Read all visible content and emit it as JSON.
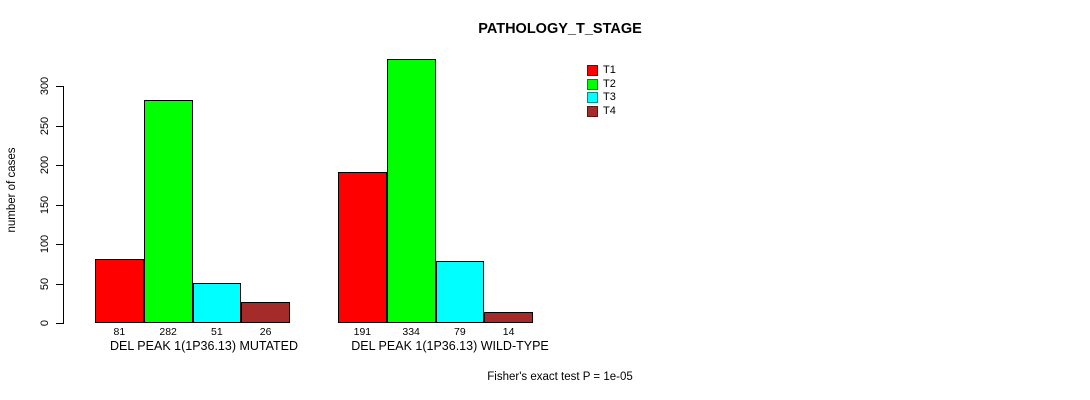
{
  "chart_data": {
    "type": "bar",
    "title": "PATHOLOGY_T_STAGE",
    "ylabel": "number of cases",
    "xlabel": "",
    "categories": [
      "DEL PEAK  1(1P36.13) MUTATED",
      "DEL PEAK  1(1P36.13) WILD-TYPE"
    ],
    "series": [
      {
        "name": "T1",
        "color": "#FF0000",
        "values": [
          81,
          191
        ]
      },
      {
        "name": "T2",
        "color": "#00FF00",
        "values": [
          282,
          334
        ]
      },
      {
        "name": "T3",
        "color": "#00FFFF",
        "values": [
          51,
          79
        ]
      },
      {
        "name": "T4",
        "color": "#A52A2A",
        "values": [
          26,
          14
        ]
      }
    ],
    "bar_value_labels": [
      [
        81,
        282,
        51,
        26
      ],
      [
        191,
        334,
        79,
        14
      ]
    ],
    "yticks": [
      0,
      50,
      100,
      150,
      200,
      250,
      300
    ],
    "ylim": [
      0,
      340
    ],
    "grid": false,
    "legend_position": "top-right",
    "legend_entries": [
      "T1",
      "T2",
      "T3",
      "T4"
    ],
    "annotation": "Fisher's exact test P = 1e-05"
  }
}
